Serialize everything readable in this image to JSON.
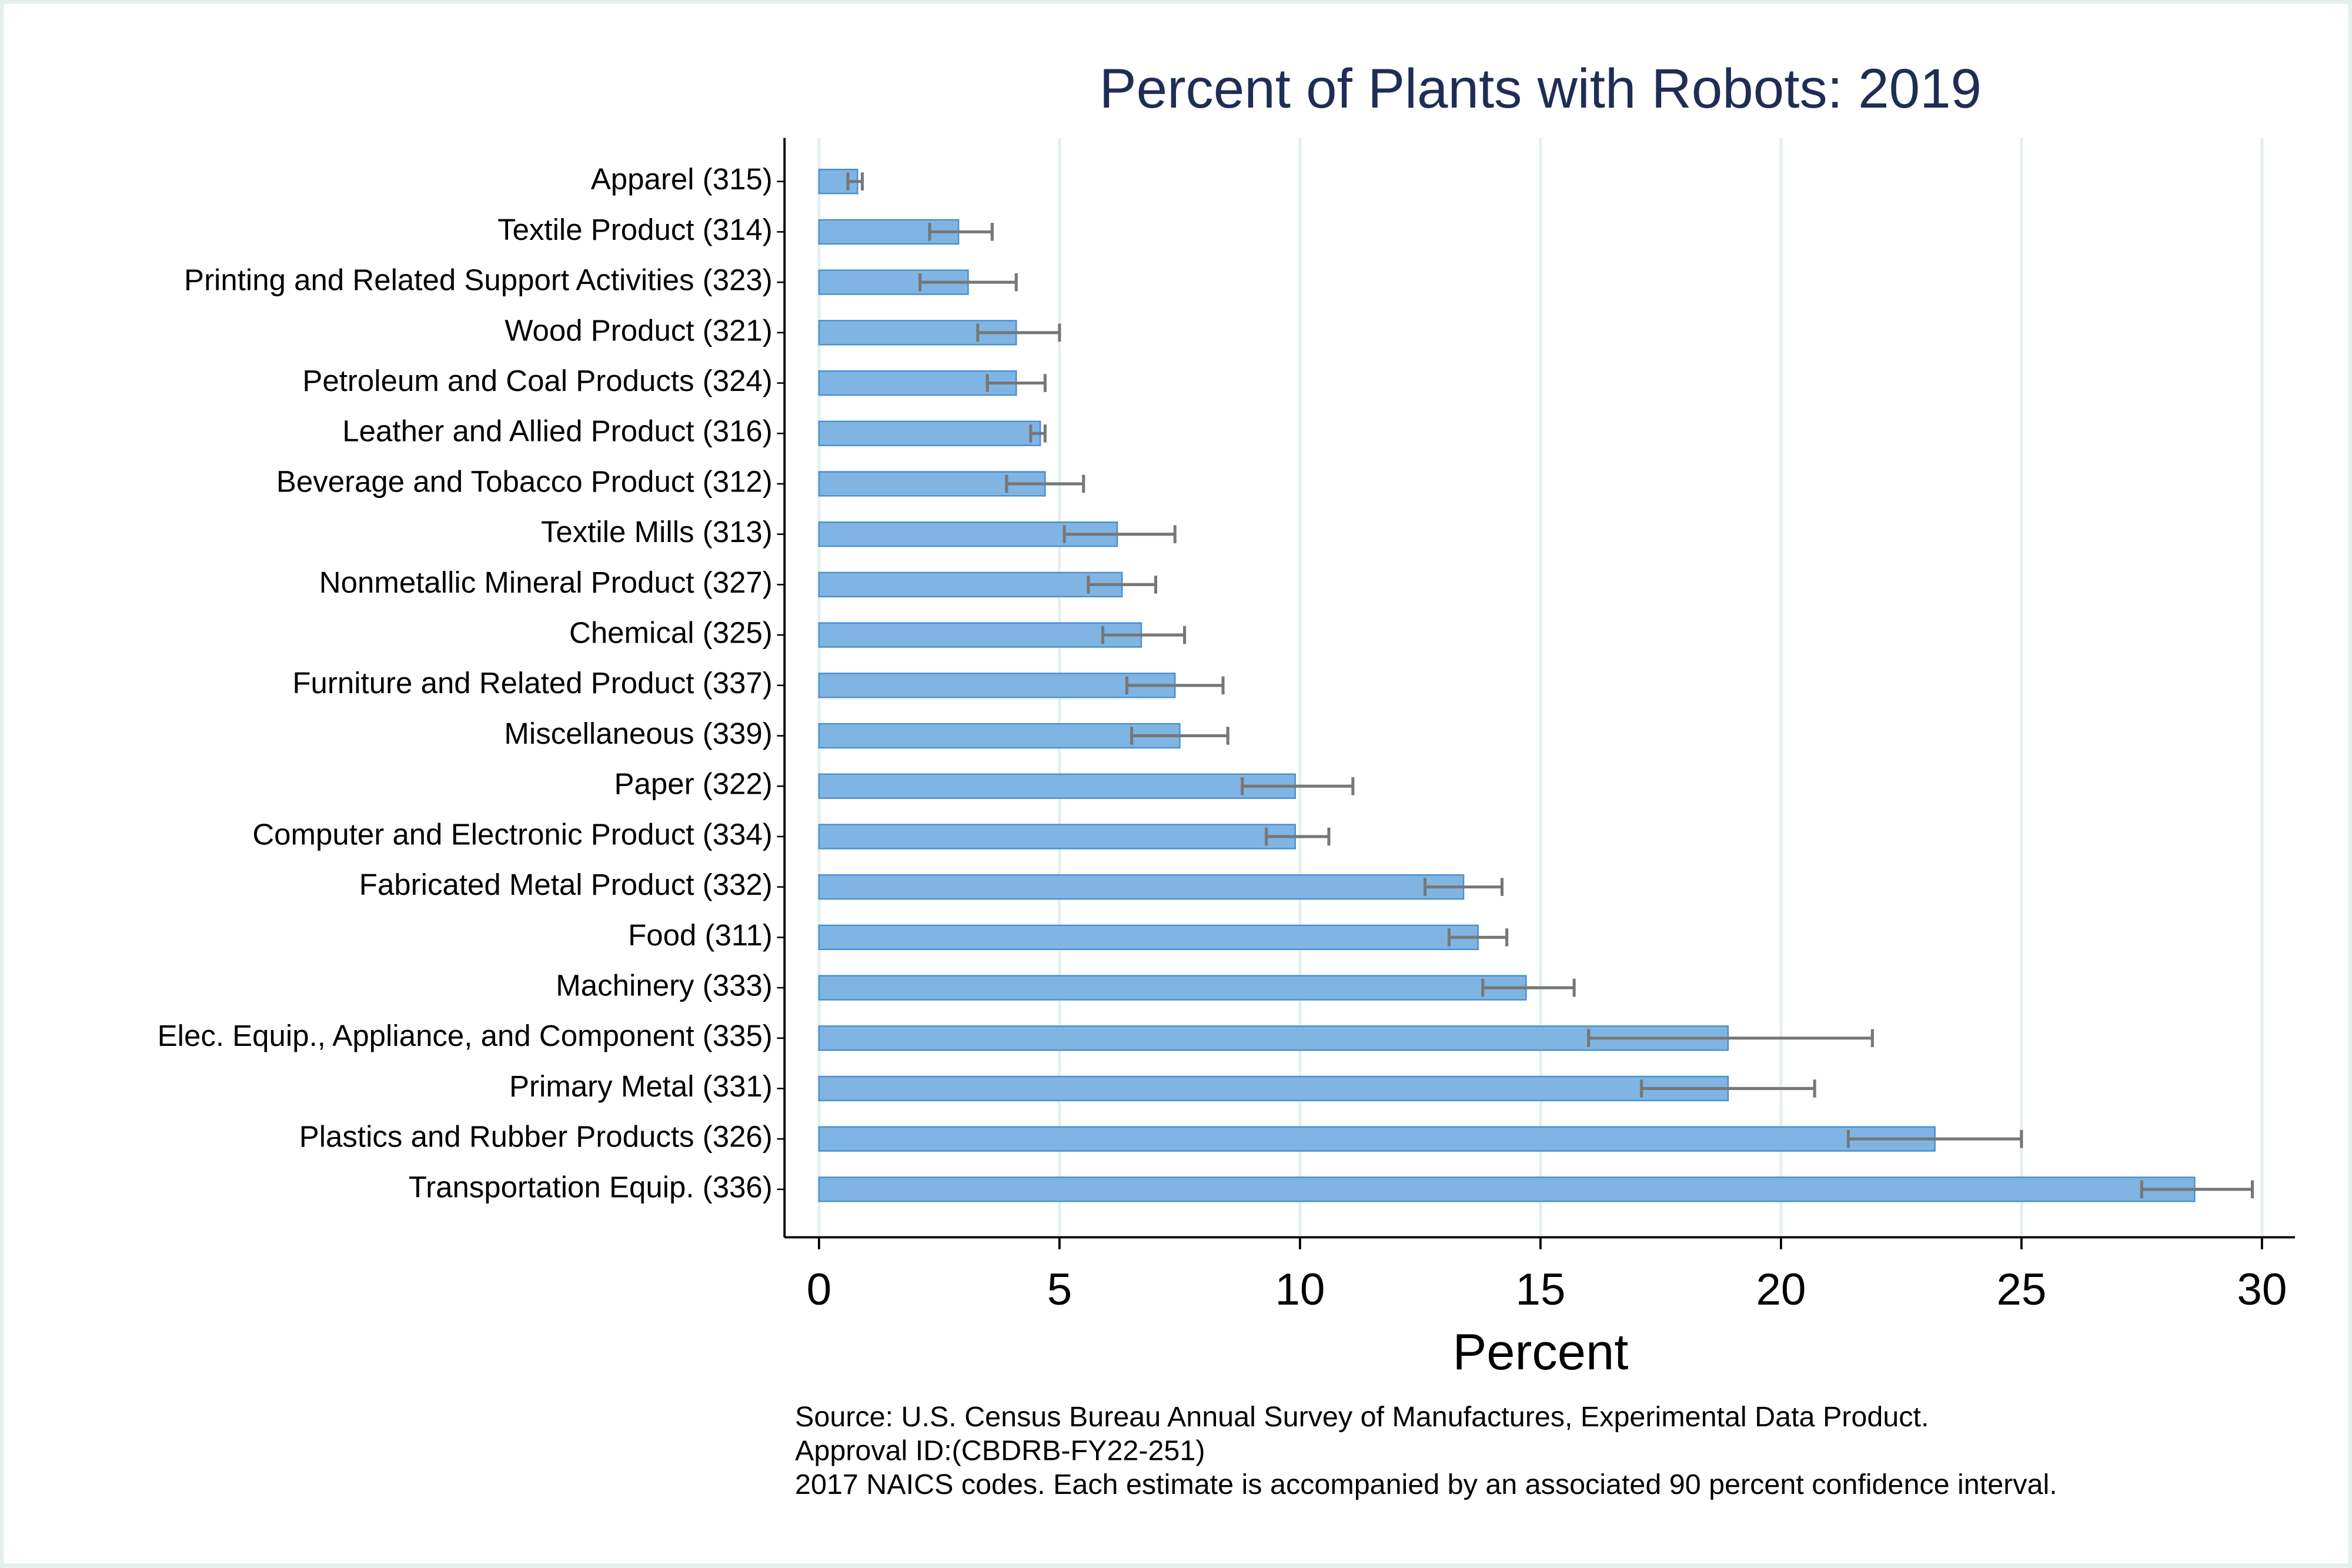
{
  "chart_data": {
    "type": "bar",
    "orientation": "horizontal",
    "title": "Percent of Plants with Robots: 2019",
    "x_label": "Percent",
    "notes": [
      "Source: U.S. Census Bureau Annual Survey of Manufactures, Experimental Data Product.",
      "Approval ID:(CBDRB-FY22-251)",
      "2017 NAICS codes. Each estimate is accompanied by an associated 90 percent confidence interval."
    ],
    "categories": [
      "Apparel (315)",
      "Textile Product (314)",
      "Printing and Related Support Activities (323)",
      "Wood Product (321)",
      "Petroleum and Coal Products (324)",
      "Leather and Allied Product (316)",
      "Beverage and Tobacco Product (312)",
      "Textile Mills (313)",
      "Nonmetallic Mineral Product (327)",
      "Chemical (325)",
      "Furniture and Related Product (337)",
      "Miscellaneous (339)",
      "Paper (322)",
      "Computer and Electronic Product (334)",
      "Fabricated Metal Product (332)",
      "Food (311)",
      "Machinery (333)",
      "Elec. Equip., Appliance, and Component (335)",
      "Primary Metal (331)",
      "Plastics and Rubber Products (326)",
      "Transportation Equip. (336)"
    ],
    "values": [
      0.8,
      2.9,
      3.1,
      4.1,
      4.1,
      4.6,
      4.7,
      6.2,
      6.3,
      6.7,
      7.4,
      7.5,
      9.9,
      9.9,
      13.4,
      13.7,
      14.7,
      18.9,
      18.9,
      23.2,
      28.6
    ],
    "error_low": [
      0.6,
      2.3,
      2.1,
      3.3,
      3.5,
      4.4,
      3.9,
      5.1,
      5.6,
      5.9,
      6.4,
      6.5,
      8.8,
      9.3,
      12.6,
      13.1,
      13.8,
      16.0,
      17.1,
      21.4,
      27.5
    ],
    "error_high": [
      0.9,
      3.6,
      4.1,
      5.0,
      4.7,
      4.7,
      5.5,
      7.4,
      7.0,
      7.6,
      8.4,
      8.5,
      11.1,
      10.6,
      14.2,
      14.3,
      15.7,
      21.9,
      20.7,
      25.0,
      29.8
    ],
    "color": "#80b5e3",
    "error_color": "#777777",
    "xlim": [
      0,
      30
    ],
    "xticks": [
      0,
      5,
      10,
      15,
      20,
      25,
      30
    ],
    "grid": true
  }
}
